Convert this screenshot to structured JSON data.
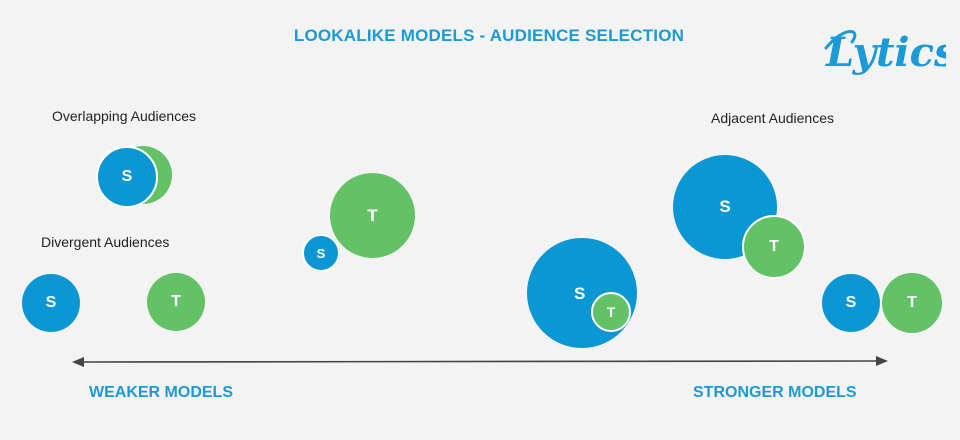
{
  "header": {
    "title": "LOOKALIKE MODELS - AUDIENCE SELECTION",
    "logo_text": "Lytics"
  },
  "labels": {
    "overlapping": "Overlapping Audiences",
    "divergent": "Divergent Audiences",
    "adjacent": "Adjacent Audiences"
  },
  "circle_letters": {
    "source": "S",
    "target": "T"
  },
  "axis": {
    "weaker": "WEAKER MODELS",
    "stronger": "STRONGER MODELS"
  },
  "colors": {
    "accent": "#1a9ad6",
    "source": "#0b97d3",
    "target": "#63c266",
    "background": "#f3f3f3",
    "axis_line": "#444444"
  }
}
